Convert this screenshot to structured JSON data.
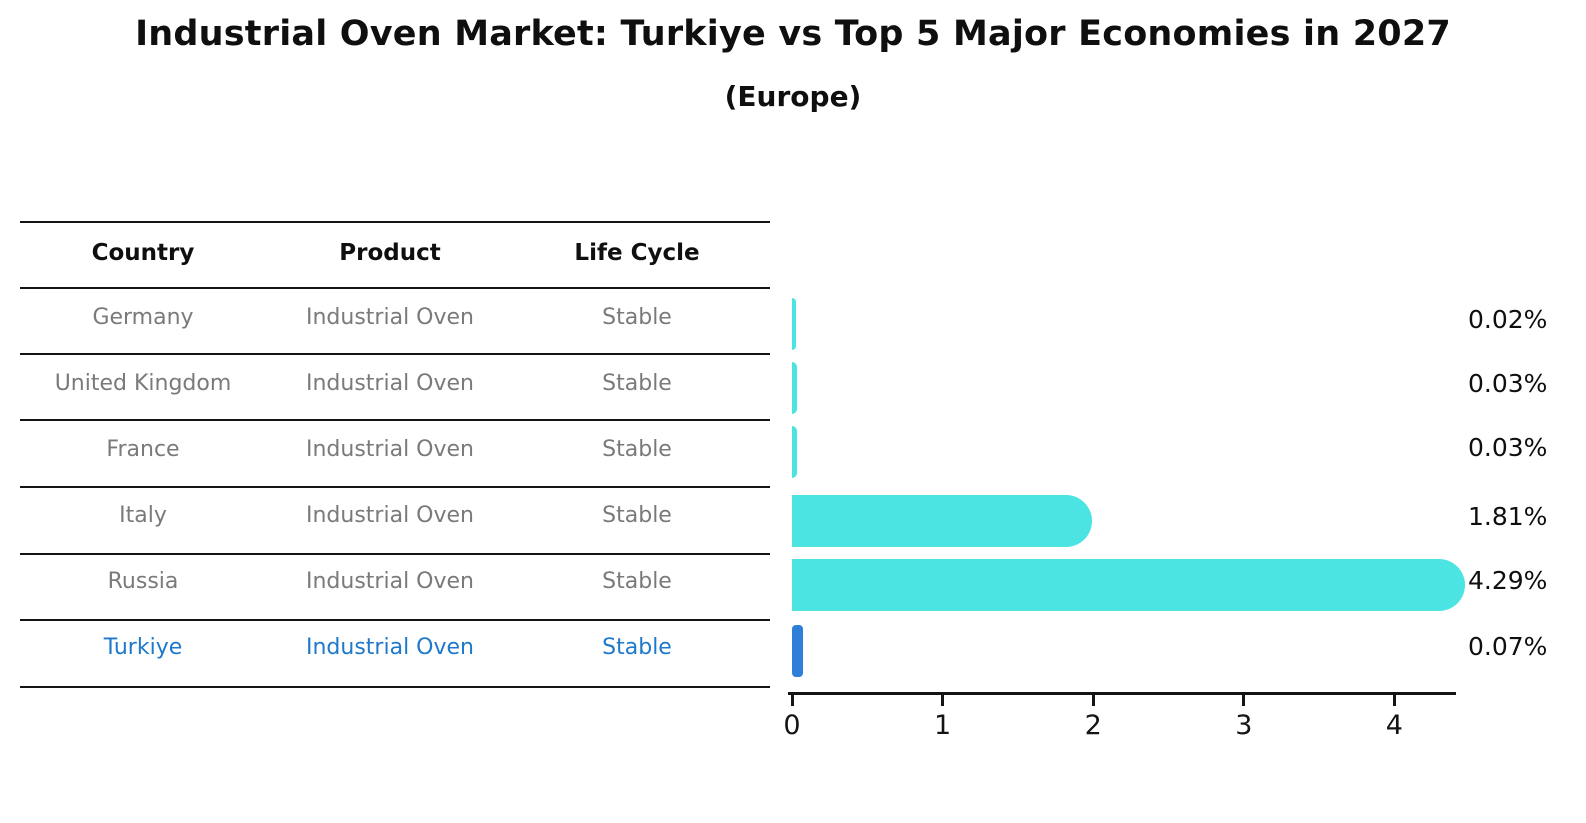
{
  "title": "Industrial Oven Market: Turkiye vs Top 5 Major Economies in 2027",
  "subtitle": "(Europe)",
  "table": {
    "headers": {
      "country": "Country",
      "product": "Product",
      "life_cycle": "Life Cycle"
    },
    "rows": [
      {
        "country": "Germany",
        "product": "Industrial Oven",
        "life_cycle": "Stable"
      },
      {
        "country": "United Kingdom",
        "product": "Industrial Oven",
        "life_cycle": "Stable"
      },
      {
        "country": "France",
        "product": "Industrial Oven",
        "life_cycle": "Stable"
      },
      {
        "country": "Italy",
        "product": "Industrial Oven",
        "life_cycle": "Stable"
      },
      {
        "country": "Russia",
        "product": "Industrial Oven",
        "life_cycle": "Stable"
      },
      {
        "country": "Turkiye",
        "product": "Industrial Oven",
        "life_cycle": "Stable"
      }
    ]
  },
  "chart_data": {
    "type": "bar",
    "orientation": "horizontal",
    "title": "Industrial Oven Market: Turkiye vs Top 5 Major Economies in 2027 (Europe)",
    "categories": [
      "Germany",
      "United Kingdom",
      "France",
      "Italy",
      "Russia",
      "Turkiye"
    ],
    "values": [
      0.02,
      0.03,
      0.03,
      1.81,
      4.29,
      0.07
    ],
    "labels": [
      "0.02%",
      "0.03%",
      "0.03%",
      "1.81%",
      "4.29%",
      "0.07%"
    ],
    "xlabel": "",
    "ylabel": "",
    "xticks": [
      "0",
      "1",
      "2",
      "3",
      "4"
    ],
    "xlim": [
      0,
      4.45
    ],
    "grid": false,
    "legend": false,
    "highlight_category": "Turkiye"
  },
  "colors": {
    "bar_cyan": "#4be4e2",
    "turkiye_bar_blue": "#2e7fd9",
    "turkiye_text_blue": "#1e78cb",
    "cell_gray": "#7a7a7a",
    "axis_black": "#141414"
  }
}
